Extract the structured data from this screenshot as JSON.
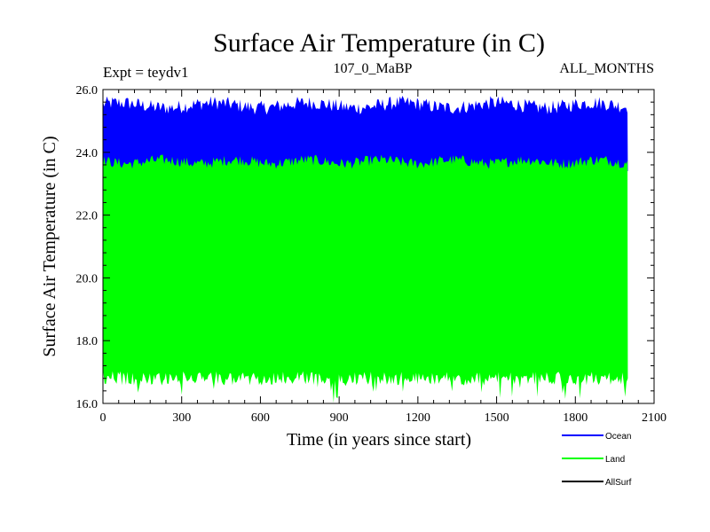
{
  "chart_data": {
    "type": "area",
    "title": "Surface Air Temperature (in C)",
    "experiment_label": "Expt = teydv1",
    "subtitle_center": "107_0_MaBP",
    "subtitle_right": "ALL_MONTHS",
    "xlabel": "Time (in years since start)",
    "ylabel": "Surface Air Temperature (in C)",
    "xlim": [
      0,
      2100
    ],
    "ylim": [
      16.0,
      26.0
    ],
    "xticks": [
      0,
      300,
      600,
      900,
      1200,
      1500,
      1800,
      2100
    ],
    "xtick_labels": [
      "0",
      "300",
      "600",
      "900",
      "1200",
      "1500",
      "1800",
      "2100"
    ],
    "yticks": [
      16.0,
      18.0,
      20.0,
      22.0,
      24.0,
      26.0
    ],
    "ytick_labels": [
      "16.0",
      "18.0",
      "20.0",
      "22.0",
      "24.0",
      "26.0"
    ],
    "x_range": [
      0,
      2000
    ],
    "series": [
      {
        "name": "Ocean",
        "color": "#0000ff",
        "lower_mean": 23.7,
        "upper_mean": 25.5
      },
      {
        "name": "Land",
        "color": "#00ff00",
        "lower_mean": 16.8,
        "upper_mean": 23.7
      },
      {
        "name": "AllSurf",
        "color": "#000000"
      }
    ]
  }
}
